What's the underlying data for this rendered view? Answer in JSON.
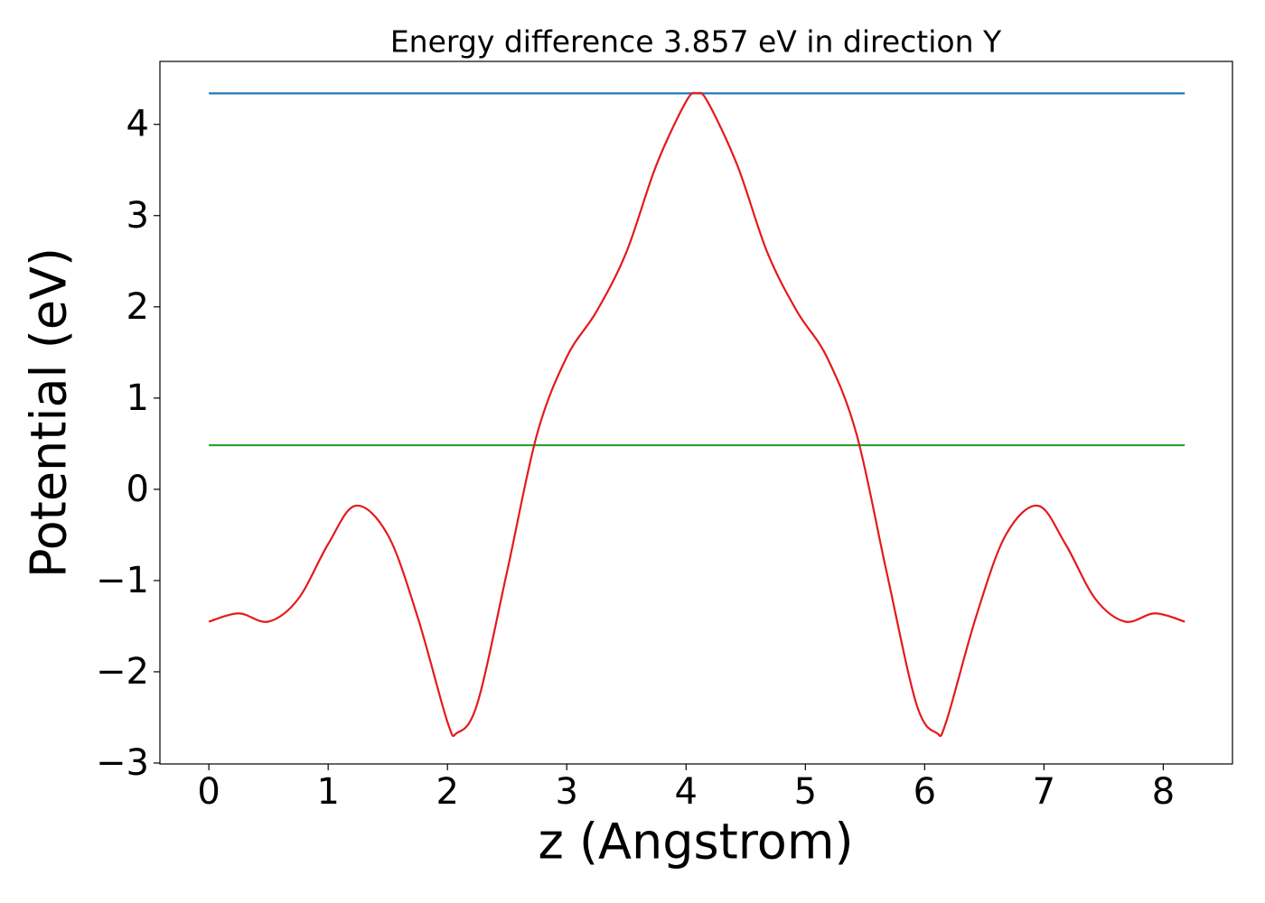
{
  "chart_data": {
    "type": "line",
    "title": "Energy difference 3.857 eV in direction Y",
    "xlabel": "z (Angstrom)",
    "ylabel": "Potential (eV)",
    "series": [
      {
        "color": "#1f77b4",
        "x": [
          0,
          8.18
        ],
        "values": [
          4.34,
          4.34
        ]
      },
      {
        "color": "#2ca02c",
        "x": [
          0,
          8.18
        ],
        "values": [
          0.483,
          0.483
        ]
      },
      {
        "color": "#e41a1c",
        "x": [
          0,
          0.25,
          0.5,
          0.75,
          1.0,
          1.23,
          1.5,
          1.75,
          2.0,
          2.08,
          2.25,
          2.5,
          2.75,
          3.0,
          3.25,
          3.5,
          3.75,
          4.0,
          4.09,
          4.18,
          4.43,
          4.68,
          4.93,
          5.18,
          5.43,
          5.68,
          5.93,
          6.1,
          6.18,
          6.43,
          6.68,
          6.95,
          7.18,
          7.43,
          7.68,
          7.93,
          8.18
        ],
        "values": [
          -1.45,
          -1.36,
          -1.45,
          -1.2,
          -0.6,
          -0.18,
          -0.5,
          -1.4,
          -2.55,
          -2.67,
          -2.35,
          -0.9,
          0.6,
          1.45,
          1.95,
          2.6,
          3.55,
          4.25,
          4.34,
          4.25,
          3.55,
          2.6,
          1.95,
          1.45,
          0.6,
          -0.9,
          -2.35,
          -2.67,
          -2.55,
          -1.4,
          -0.5,
          -0.18,
          -0.6,
          -1.2,
          -1.45,
          -1.36,
          -1.45
        ]
      }
    ],
    "xlim": [
      -0.41,
      8.58
    ],
    "ylim": [
      -3.01,
      4.69
    ],
    "xticks": [
      0,
      1,
      2,
      3,
      4,
      5,
      6,
      7,
      8
    ],
    "yticks": [
      {
        "value": -3,
        "label": "−3"
      },
      {
        "value": -2,
        "label": "−2"
      },
      {
        "value": -1,
        "label": "−1"
      },
      0,
      1,
      2,
      3,
      4
    ],
    "grid": false
  }
}
